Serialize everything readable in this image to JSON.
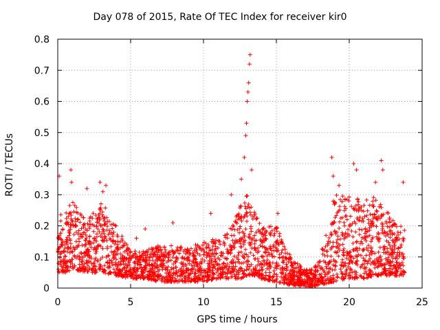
{
  "chart_data": {
    "type": "scatter",
    "title": "Day 078 of 2015, Rate Of TEC Index for receiver kir0",
    "xlabel": "GPS time / hours",
    "ylabel": "ROTI / TECUs",
    "xlim": [
      0,
      25
    ],
    "ylim": [
      0,
      0.8
    ],
    "xticks": [
      0,
      5,
      10,
      15,
      20,
      25
    ],
    "yticks": [
      0,
      0.1,
      0.2,
      0.3,
      0.4,
      0.5,
      0.6,
      0.7,
      0.8
    ],
    "grid": true,
    "marker": "+",
    "color": "#ff0000",
    "x_range_of_data": [
      0,
      23.8
    ],
    "envelope": {
      "description": "approximate upper/lower envelope of the dense point cloud vs time",
      "x": [
        0,
        0.5,
        1,
        2,
        3,
        4,
        5,
        6,
        7,
        8,
        9,
        10,
        11,
        12,
        12.5,
        13,
        13.5,
        14,
        15,
        16,
        17,
        17.5,
        18,
        19,
        20,
        21,
        22,
        23,
        23.8
      ],
      "upper": [
        0.26,
        0.24,
        0.28,
        0.22,
        0.28,
        0.2,
        0.12,
        0.12,
        0.14,
        0.14,
        0.13,
        0.15,
        0.16,
        0.2,
        0.26,
        0.3,
        0.25,
        0.2,
        0.2,
        0.1,
        0.06,
        0.06,
        0.1,
        0.3,
        0.3,
        0.28,
        0.3,
        0.22,
        0.2
      ],
      "lower": [
        0.05,
        0.05,
        0.06,
        0.05,
        0.05,
        0.04,
        0.03,
        0.03,
        0.02,
        0.02,
        0.02,
        0.02,
        0.03,
        0.03,
        0.03,
        0.04,
        0.04,
        0.03,
        0.02,
        0.01,
        0.005,
        0.005,
        0.01,
        0.02,
        0.03,
        0.03,
        0.04,
        0.04,
        0.04
      ]
    },
    "peaks": {
      "x": [
        0.1,
        0.9,
        0.95,
        2.0,
        2.9,
        3.1,
        3.3,
        5.4,
        6.0,
        7.9,
        10.5,
        11.9,
        12.6,
        12.8,
        12.9,
        12.95,
        13.0,
        13.05,
        13.1,
        13.15,
        13.2,
        13.3,
        15.1,
        18.8,
        18.9,
        19.3,
        20.3,
        20.5,
        21.8,
        22.2,
        22.3,
        23.7
      ],
      "y": [
        0.36,
        0.38,
        0.34,
        0.32,
        0.34,
        0.31,
        0.33,
        0.16,
        0.19,
        0.21,
        0.24,
        0.3,
        0.35,
        0.42,
        0.49,
        0.53,
        0.6,
        0.63,
        0.66,
        0.72,
        0.75,
        0.38,
        0.24,
        0.42,
        0.36,
        0.33,
        0.4,
        0.38,
        0.34,
        0.41,
        0.38,
        0.34
      ]
    }
  }
}
